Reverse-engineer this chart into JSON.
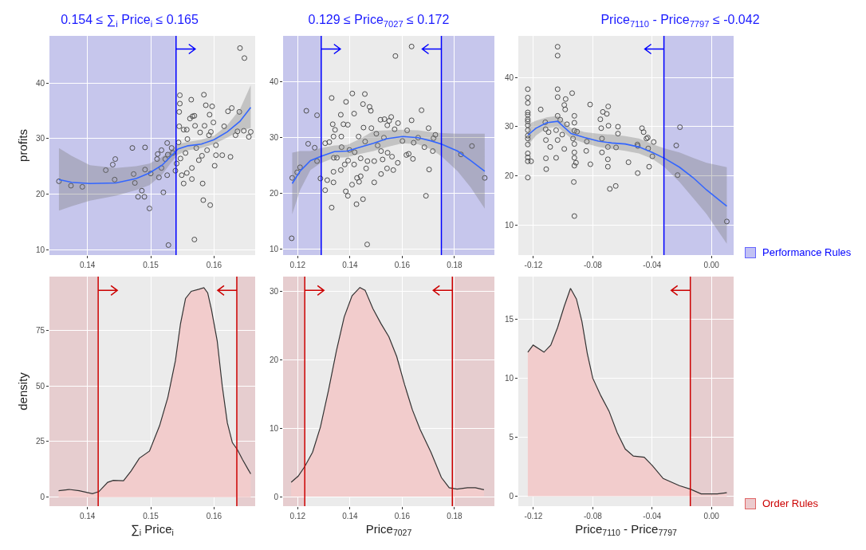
{
  "chart_data": [
    {
      "type": "scatter",
      "title": "0.154 ≤ ∑$_{i}$ Price$_{i}$ ≤ 0.165",
      "ylabel": "profits",
      "grid": true,
      "xlim": [
        0.134,
        0.1665
      ],
      "xticks": [
        0.14,
        0.15,
        0.16
      ],
      "ylim": [
        9,
        48.5
      ],
      "yticks": [
        10,
        20,
        30,
        40
      ],
      "series": [
        {
          "marker": "circle",
          "color": "#4d4d4d",
          "x": [
            0.1355,
            0.1374,
            0.1392,
            0.1429,
            0.144,
            0.1444,
            0.1443,
            0.1471,
            0.1473,
            0.1475,
            0.148,
            0.1486,
            0.149,
            0.1491,
            0.1491,
            0.1498,
            0.15,
            0.1511,
            0.151,
            0.1513,
            0.1517,
            0.1517,
            0.152,
            0.1523,
            0.1526,
            0.1526,
            0.1527,
            0.1533,
            0.1535,
            0.1528,
            0.1539,
            0.1541,
            0.1544,
            0.1546,
            0.1546,
            0.1545,
            0.1545,
            0.1547,
            0.1549,
            0.1552,
            0.1552,
            0.1557,
            0.1557,
            0.1555,
            0.1558,
            0.1562,
            0.1564,
            0.1566,
            0.1569,
            0.157,
            0.1565,
            0.1565,
            0.1569,
            0.1572,
            0.1576,
            0.1578,
            0.1581,
            0.1582,
            0.1584,
            0.1585,
            0.1583,
            0.1587,
            0.1589,
            0.1592,
            0.1593,
            0.1595,
            0.1597,
            0.1599,
            0.1601,
            0.1594,
            0.1603,
            0.1603,
            0.1613,
            0.1616,
            0.1622,
            0.1626,
            0.1628,
            0.1634,
            0.1637,
            0.164,
            0.1641,
            0.1647,
            0.1648,
            0.1655,
            0.1658
          ],
          "values": [
            22.3,
            21.5,
            21.3,
            24.3,
            25.3,
            26.3,
            22.6,
            28.3,
            23.6,
            22.0,
            19.5,
            20.6,
            19.5,
            28.4,
            24.4,
            17.4,
            23.7,
            27.2,
            26.3,
            23.0,
            27.9,
            24.7,
            20.3,
            26.3,
            29.2,
            23.4,
            27.1,
            28.3,
            27.4,
            10.8,
            24.2,
            25.5,
            29.3,
            37.8,
            36.3,
            34.8,
            32.2,
            26.4,
            23.4,
            21.9,
            31.6,
            31.6,
            23.8,
            27.4,
            29.9,
            33.6,
            37.0,
            34.0,
            34.1,
            32.3,
            24.7,
            22.7,
            11.8,
            28.3,
            26.1,
            31.1,
            26.9,
            21.9,
            37.9,
            32.3,
            18.9,
            36.0,
            27.9,
            30.6,
            34.3,
            31.2,
            35.8,
            32.9,
            25.1,
            18.0,
            28.8,
            27.0,
            27.0,
            32.2,
            34.9,
            26.7,
            35.5,
            30.6,
            31.3,
            34.8,
            46.3,
            31.4,
            44.5,
            30.3,
            31.2
          ]
        },
        {
          "type": "line",
          "color": "#3366ff",
          "x": [
            0.1355,
            0.1375,
            0.1404,
            0.1445,
            0.1477,
            0.1498,
            0.1518,
            0.1531,
            0.1543,
            0.1559,
            0.158,
            0.16,
            0.1621,
            0.1641,
            0.1658
          ],
          "values": [
            22.6,
            22.1,
            21.9,
            22.0,
            22.8,
            23.8,
            25.2,
            26.7,
            28.1,
            28.7,
            29.0,
            29.8,
            31.2,
            33.1,
            35.6
          ],
          "upper": [
            28.3,
            26.9,
            25.2,
            24.7,
            25.0,
            25.5,
            26.7,
            27.8,
            29.0,
            29.4,
            29.8,
            30.5,
            32.4,
            35.3,
            39.6
          ],
          "lower": [
            17.0,
            17.8,
            18.8,
            19.7,
            20.7,
            21.6,
            23.5,
            25.5,
            27.1,
            27.9,
            28.3,
            29.0,
            30.2,
            31.4,
            31.9
          ]
        }
      ],
      "ref_lines": [
        {
          "axis": "x",
          "value": 0.154,
          "color": "#0000ff"
        }
      ],
      "bands": [
        {
          "axis": "x",
          "from": 0.134,
          "to": 0.154,
          "color": "#9999ee"
        }
      ]
    },
    {
      "type": "scatter",
      "title": "0.129 ≤ Price$_{7027}$ ≤ 0.172",
      "grid": true,
      "xlim": [
        0.1144,
        0.1953
      ],
      "xticks": [
        0.12,
        0.14,
        0.16,
        0.18
      ],
      "ylim": [
        9,
        48.2
      ],
      "yticks": [
        10,
        20,
        30,
        40
      ],
      "series": [
        {
          "marker": "circle",
          "color": "#4d4d4d",
          "x": [
            0.1177,
            0.1179,
            0.1198,
            0.1209,
            0.1233,
            0.124,
            0.1265,
            0.1274,
            0.1274,
            0.1287,
            0.1305,
            0.1313,
            0.1305,
            0.1321,
            0.133,
            0.133,
            0.1334,
            0.1337,
            0.1338,
            0.1337,
            0.1337,
            0.1343,
            0.135,
            0.1365,
            0.1367,
            0.1368,
            0.1365,
            0.1375,
            0.138,
            0.1385,
            0.1384,
            0.1392,
            0.1392,
            0.1393,
            0.1398,
            0.1408,
            0.1409,
            0.1416,
            0.1416,
            0.1418,
            0.1425,
            0.1427,
            0.1433,
            0.1435,
            0.1441,
            0.1441,
            0.145,
            0.145,
            0.1452,
            0.1457,
            0.1458,
            0.1462,
            0.1467,
            0.1466,
            0.1475,
            0.148,
            0.1482,
            0.1493,
            0.1493,
            0.1501,
            0.1506,
            0.1517,
            0.1519,
            0.1519,
            0.1525,
            0.153,
            0.1532,
            0.1542,
            0.1543,
            0.1544,
            0.155,
            0.1558,
            0.1561,
            0.1566,
            0.1571,
            0.1574,
            0.1584,
            0.1583,
            0.1601,
            0.1616,
            0.1619,
            0.1625,
            0.1636,
            0.1636,
            0.1641,
            0.1644,
            0.1661,
            0.1674,
            0.1685,
            0.1691,
            0.1701,
            0.1703,
            0.1717,
            0.172,
            0.1727,
            0.1825,
            0.1867,
            0.1916
          ],
          "values": [
            12.0,
            22.8,
            23.8,
            24.7,
            34.8,
            28.9,
            28.2,
            34.0,
            25.8,
            22.7,
            20.6,
            22.4,
            29.0,
            29.2,
            37.1,
            17.5,
            32.4,
            30.2,
            26.4,
            23.9,
            22.0,
            31.4,
            26.4,
            34.1,
            30.2,
            28.3,
            24.2,
            32.4,
            25.2,
            36.4,
            20.4,
            19.6,
            32.3,
            25.9,
            27.8,
            21.6,
            37.9,
            34.3,
            25.2,
            27.4,
            18.1,
            22.8,
            30.2,
            22.1,
            23.1,
            26.3,
            36.0,
            19.0,
            31.8,
            37.8,
            29.3,
            24.5,
            25.8,
            10.9,
            35.5,
            34.8,
            31.7,
            22.0,
            25.8,
            30.7,
            28.6,
            33.2,
            23.5,
            27.6,
            26.1,
            30.0,
            33.3,
            24.5,
            32.2,
            27.3,
            33.0,
            33.7,
            26.6,
            24.2,
            31.5,
            44.6,
            32.6,
            25.5,
            29.4,
            26.9,
            31.3,
            27.1,
            33.1,
            46.3,
            26.2,
            29.1,
            30.0,
            34.9,
            28.3,
            19.6,
            31.7,
            24.3,
            27.6,
            29.9,
            30.5,
            27.0,
            28.5,
            22.8
          ]
        },
        {
          "type": "line",
          "color": "#3366ff",
          "x": [
            0.1179,
            0.1209,
            0.1249,
            0.1286,
            0.134,
            0.139,
            0.144,
            0.149,
            0.1541,
            0.1601,
            0.1661,
            0.1712,
            0.1752,
            0.1812,
            0.1862,
            0.1916
          ],
          "values": [
            21.8,
            24.0,
            25.9,
            26.6,
            27.5,
            27.6,
            28.3,
            29.0,
            29.8,
            30.2,
            30.0,
            29.4,
            28.8,
            27.6,
            25.9,
            24.0
          ],
          "upper": [
            27.3,
            27.6,
            27.6,
            28.1,
            28.6,
            28.7,
            29.8,
            31.2,
            31.3,
            31.4,
            31.3,
            31.0,
            30.8,
            30.7,
            30.7,
            30.7
          ],
          "lower": [
            16.3,
            20.6,
            24.2,
            25.4,
            26.4,
            26.5,
            27.1,
            27.6,
            28.3,
            29.0,
            28.8,
            27.9,
            26.6,
            24.0,
            21.1,
            17.3
          ]
        }
      ],
      "ref_lines": [
        {
          "axis": "x",
          "value": 0.129,
          "color": "#0000ff"
        },
        {
          "axis": "x",
          "value": 0.175,
          "color": "#0000ff"
        }
      ],
      "bands": [
        {
          "axis": "x",
          "from": 0.1144,
          "to": 0.129,
          "color": "#9999ee"
        },
        {
          "axis": "x",
          "from": 0.175,
          "to": 0.1953,
          "color": "#9999ee"
        }
      ]
    },
    {
      "type": "scatter",
      "title": "Price$_{7110}$ - Price$_{7797}$ ≤ -0.042",
      "grid": true,
      "legend": "bottom right",
      "xlim": [
        -0.1302,
        0.015
      ],
      "xticks": [
        -0.12,
        -0.08,
        -0.04,
        {
          "value": 0,
          "label": "0.00"
        }
      ],
      "ylim": [
        4,
        48.4
      ],
      "yticks": [
        10,
        20,
        30,
        40
      ],
      "series": [
        {
          "marker": "circle",
          "color": "#4d4d4d",
          "x": [
            -0.1238,
            -0.1238,
            -0.1238,
            -0.1238,
            -0.1238,
            -0.1238,
            -0.1238,
            -0.1238,
            -0.1238,
            -0.1238,
            -0.1238,
            -0.1238,
            -0.1238,
            -0.1238,
            -0.1238,
            -0.1238,
            -0.1216,
            -0.1151,
            -0.112,
            -0.1118,
            -0.1116,
            -0.1116,
            -0.1114,
            -0.1098,
            -0.1087,
            -0.1047,
            -0.1047,
            -0.1037,
            -0.1037,
            -0.1037,
            -0.1037,
            -0.1037,
            -0.1037,
            -0.1019,
            -0.1006,
            -0.0992,
            -0.0992,
            -0.0986,
            -0.0983,
            -0.0974,
            -0.0939,
            -0.0933,
            -0.0928,
            -0.0924,
            -0.0924,
            -0.0924,
            -0.0924,
            -0.0924,
            -0.0924,
            -0.0924,
            -0.0924,
            -0.0913,
            -0.0906,
            -0.0844,
            -0.084,
            -0.0818,
            -0.0816,
            -0.0749,
            -0.0743,
            -0.0738,
            -0.0738,
            -0.0732,
            -0.0705,
            -0.0696,
            -0.0698,
            -0.0698,
            -0.0698,
            -0.0694,
            -0.0685,
            -0.0645,
            -0.0643,
            -0.063,
            -0.063,
            -0.0559,
            -0.0499,
            -0.0497,
            -0.0496,
            -0.0468,
            -0.0457,
            -0.0438,
            -0.0429,
            -0.0426,
            -0.042,
            -0.0398,
            -0.0389,
            -0.0237,
            -0.0228,
            -0.0212,
            0.0104
          ],
          "values": [
            37.6,
            35.9,
            34.8,
            32.9,
            32.4,
            31.5,
            31.1,
            30.3,
            29.3,
            28.2,
            27.6,
            26.4,
            24.6,
            23.8,
            23.0,
            19.7,
            23.0,
            33.5,
            30.9,
            29.5,
            27.3,
            23.6,
            21.4,
            28.9,
            25.9,
            23.7,
            29.3,
            46.2,
            44.4,
            37.6,
            36.0,
            32.2,
            27.3,
            31.4,
            28.4,
            25.5,
            34.4,
            33.5,
            35.6,
            30.5,
            36.8,
            27.6,
            18.8,
            11.9,
            32.2,
            30.8,
            29.2,
            26.5,
            24.8,
            23.7,
            22.1,
            22.7,
            29.0,
            25.1,
            27.0,
            34.5,
            22.4,
            31.5,
            29.7,
            27.6,
            24.8,
            33.0,
            32.6,
            34.1,
            25.9,
            23.4,
            21.9,
            30.2,
            17.4,
            18.0,
            25.8,
            30.0,
            28.6,
            22.8,
            26.4,
            20.6,
            26.1,
            29.7,
            28.9,
            27.6,
            27.8,
            25.6,
            21.9,
            24.0,
            26.9,
            26.2,
            20.2,
            29.9,
            10.8
          ]
        },
        {
          "type": "line",
          "color": "#3366ff",
          "x": [
            -0.1238,
            -0.1183,
            -0.1111,
            -0.1037,
            -0.0946,
            -0.0855,
            -0.0763,
            -0.0672,
            -0.0581,
            -0.0489,
            -0.0398,
            -0.0316,
            -0.0215,
            -0.0124,
            -0.0033,
            0.0104
          ],
          "values": [
            28.3,
            29.7,
            30.8,
            31.1,
            28.6,
            27.8,
            27.1,
            26.7,
            26.5,
            25.9,
            24.8,
            23.6,
            21.8,
            19.7,
            17.2,
            13.9
          ],
          "upper": [
            30.5,
            31.2,
            31.9,
            32.2,
            29.7,
            28.9,
            28.6,
            28.4,
            28.1,
            27.6,
            26.5,
            25.6,
            24.8,
            23.7,
            22.7,
            21.8
          ],
          "lower": [
            26.2,
            28.2,
            29.7,
            30.0,
            27.6,
            26.7,
            25.9,
            25.5,
            25.1,
            24.6,
            23.5,
            21.8,
            18.8,
            15.6,
            12.3,
            6.3
          ]
        }
      ],
      "ref_lines": [
        {
          "axis": "x",
          "value": -0.032,
          "color": "#0000ff"
        }
      ],
      "bands": [
        {
          "axis": "x",
          "from": -0.032,
          "to": 0.015,
          "color": "#9999ee",
          "label": "Performance Rules"
        }
      ]
    },
    {
      "type": "area",
      "xlabel": "∑$_{i}$ Price$_{i}$",
      "ylabel": "density",
      "grid": true,
      "color": "#f2cccc",
      "xlim": [
        0.134,
        0.1665
      ],
      "xticks": [
        0.14,
        0.15,
        0.16
      ],
      "ylim": [
        -4,
        99
      ],
      "yticks": [
        0,
        25,
        50,
        75
      ],
      "x": [
        0.13545,
        0.1371,
        0.1387,
        0.1408,
        0.1418,
        0.1432,
        0.1441,
        0.1457,
        0.1469,
        0.1482,
        0.1498,
        0.1514,
        0.1527,
        0.1539,
        0.1547,
        0.1555,
        0.1564,
        0.1576,
        0.1584,
        0.159,
        0.1596,
        0.1605,
        0.1613,
        0.1621,
        0.1629,
        0.1637,
        0.1645,
        0.1654,
        0.1658
      ],
      "values": [
        2.9,
        3.5,
        2.9,
        1.6,
        2.5,
        6.7,
        7.6,
        7.4,
        11.8,
        17.5,
        20.7,
        32.1,
        44.8,
        61.3,
        77.8,
        89.2,
        92.4,
        93.3,
        94.0,
        91.7,
        84.1,
        70.2,
        49.9,
        33.4,
        24.5,
        21.3,
        16.9,
        12.4,
        10.5
      ],
      "ref_lines": [
        {
          "axis": "x",
          "value": 0.1417,
          "color": "#cc0000"
        },
        {
          "axis": "x",
          "value": 0.1636,
          "color": "#cc0000"
        }
      ],
      "bands": [
        {
          "axis": "x",
          "from": 0.134,
          "to": 0.1417,
          "color": "#e0a8ac"
        },
        {
          "axis": "x",
          "from": 0.1636,
          "to": 0.1665,
          "color": "#e0a8ac"
        }
      ]
    },
    {
      "type": "area",
      "xlabel": "Price$_{7027}$",
      "grid": true,
      "color": "#f2cccc",
      "xlim": [
        0.1144,
        0.1953
      ],
      "xticks": [
        0.12,
        0.14,
        0.16,
        0.18
      ],
      "ylim": [
        -1.4,
        32.2
      ],
      "yticks": [
        0,
        10,
        20,
        30
      ],
      "x": [
        0.1175,
        0.1202,
        0.1227,
        0.1257,
        0.1287,
        0.1318,
        0.1348,
        0.1378,
        0.1408,
        0.1438,
        0.1458,
        0.1488,
        0.1519,
        0.1549,
        0.1579,
        0.1609,
        0.1639,
        0.1669,
        0.171,
        0.175,
        0.178,
        0.181,
        0.185,
        0.188,
        0.1913
      ],
      "values": [
        2.1,
        3.0,
        4.4,
        6.5,
        10.2,
        15.6,
        21.3,
        26.3,
        29.4,
        30.6,
        30.2,
        27.5,
        25.3,
        23.4,
        20.5,
        16.4,
        12.7,
        9.8,
        6.5,
        2.8,
        1.3,
        1.1,
        1.3,
        1.3,
        1.0
      ],
      "ref_lines": [
        {
          "axis": "x",
          "value": 0.1227,
          "color": "#cc0000"
        },
        {
          "axis": "x",
          "value": 0.1792,
          "color": "#cc0000"
        }
      ],
      "bands": [
        {
          "axis": "x",
          "from": 0.1144,
          "to": 0.1227,
          "color": "#e0a8ac"
        },
        {
          "axis": "x",
          "from": 0.1792,
          "to": 0.1953,
          "color": "#e0a8ac"
        }
      ]
    },
    {
      "type": "area",
      "xlabel": "Price$_{7110}$ - Price$_{7797}$",
      "grid": true,
      "color": "#f2cccc",
      "legend": "bottom right",
      "xlim": [
        -0.1302,
        0.015
      ],
      "xticks": [
        -0.12,
        -0.08,
        -0.04,
        {
          "value": 0,
          "label": "0.00"
        }
      ],
      "ylim": [
        -0.84,
        18.6
      ],
      "yticks": [
        0,
        5,
        10,
        15
      ],
      "x": [
        -0.1238,
        -0.1202,
        -0.1129,
        -0.1083,
        -0.1037,
        -0.0992,
        -0.095,
        -0.091,
        -0.0873,
        -0.0837,
        -0.08,
        -0.0745,
        -0.069,
        -0.0636,
        -0.0581,
        -0.0526,
        -0.0453,
        -0.0398,
        -0.0325,
        -0.0216,
        -0.0142,
        -0.0069,
        0.004,
        0.0104
      ],
      "values": [
        12.2,
        12.8,
        12.2,
        12.8,
        14.3,
        16.1,
        17.6,
        16.7,
        14.8,
        12.1,
        10.0,
        8.5,
        7.2,
        5.4,
        4.0,
        3.4,
        3.3,
        2.6,
        1.5,
        0.9,
        0.6,
        0.2,
        0.2,
        0.3
      ],
      "ref_lines": [
        {
          "axis": "x",
          "value": -0.0142,
          "color": "#cc0000"
        }
      ],
      "bands": [
        {
          "axis": "x",
          "from": -0.0142,
          "to": 0.015,
          "color": "#e0a8ac",
          "label": "Order Rules"
        }
      ]
    }
  ]
}
